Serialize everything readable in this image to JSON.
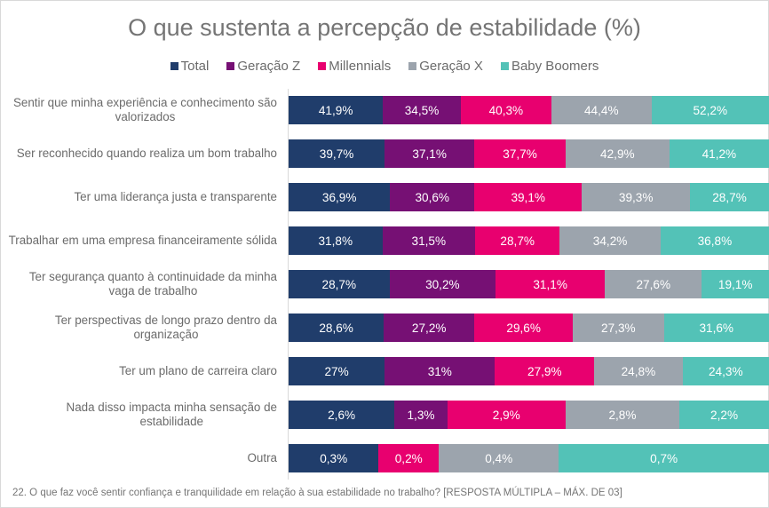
{
  "chart_data": {
    "type": "bar",
    "orientation": "horizontal",
    "stacked": "percent",
    "title": "O que sustenta a percepção de estabilidade (%)",
    "xlabel": "",
    "ylabel": "",
    "legend_position": "top",
    "grid": false,
    "categories": [
      "Sentir que minha experiência e conhecimento são valorizados",
      "Ser reconhecido quando realiza um bom trabalho",
      "Ter uma liderança justa e transparente",
      "Trabalhar em uma empresa financeiramente sólida",
      "Ter segurança quanto à continuidade da minha vaga de trabalho",
      "Ter perspectivas de longo prazo dentro da organização",
      "Ter um plano de carreira claro",
      "Nada disso impacta minha sensação de estabilidade",
      "Outra"
    ],
    "series": [
      {
        "name": "Total",
        "color": "#203d6b",
        "values": [
          41.9,
          39.7,
          36.9,
          31.8,
          28.7,
          28.6,
          27,
          2.6,
          0.3
        ],
        "labels": [
          "41,9%",
          "39,7%",
          "36,9%",
          "31,8%",
          "28,7%",
          "28,6%",
          "27%",
          "2,6%",
          "0,3%"
        ]
      },
      {
        "name": "Geração Z",
        "color": "#761074",
        "values": [
          34.5,
          37.1,
          30.6,
          31.5,
          30.2,
          27.2,
          31,
          1.3,
          0
        ],
        "labels": [
          "34,5%",
          "37,1%",
          "30,6%",
          "31,5%",
          "30,2%",
          "27,2%",
          "31%",
          "1,3%",
          ""
        ]
      },
      {
        "name": "Millennials",
        "color": "#e8006f",
        "values": [
          40.3,
          37.7,
          39.1,
          28.7,
          31.1,
          29.6,
          27.9,
          2.9,
          0.2
        ],
        "labels": [
          "40,3%",
          "37,7%",
          "39,1%",
          "28,7%",
          "31,1%",
          "29,6%",
          "27,9%",
          "2,9%",
          "0,2%"
        ]
      },
      {
        "name": "Geração X",
        "color": "#9ca4ad",
        "values": [
          44.4,
          42.9,
          39.3,
          34.2,
          27.6,
          27.3,
          24.8,
          2.8,
          0.4
        ],
        "labels": [
          "44,4%",
          "42,9%",
          "39,3%",
          "34,2%",
          "27,6%",
          "27,3%",
          "24,8%",
          "2,8%",
          "0,4%"
        ]
      },
      {
        "name": "Baby Boomers",
        "color": "#53c2b7",
        "values": [
          52.2,
          41.2,
          28.7,
          36.8,
          19.1,
          31.6,
          24.3,
          2.2,
          0.7
        ],
        "labels": [
          "52,2%",
          "41,2%",
          "28,7%",
          "36,8%",
          "19,1%",
          "31,6%",
          "24,3%",
          "2,2%",
          "0,7%"
        ]
      }
    ]
  },
  "category_lines": [
    [
      "Sentir que minha experiência e conhecimento são",
      "valorizados"
    ],
    [
      "Ser reconhecido quando realiza um bom trabalho"
    ],
    [
      "Ter uma liderança justa e transparente"
    ],
    [
      "Trabalhar em uma empresa financeiramente sólida"
    ],
    [
      "Ter segurança quanto à continuidade da minha",
      "vaga de trabalho"
    ],
    [
      "Ter perspectivas de longo prazo dentro da",
      "organização"
    ],
    [
      "Ter um plano de carreira claro"
    ],
    [
      "Nada disso impacta minha sensação de",
      "estabilidade"
    ],
    [
      "Outra"
    ]
  ],
  "footer": "22. O que faz você sentir confiança e tranquilidade em relação à sua estabilidade no trabalho? [RESPOSTA MÚLTIPLA – MÁX. DE 03]"
}
